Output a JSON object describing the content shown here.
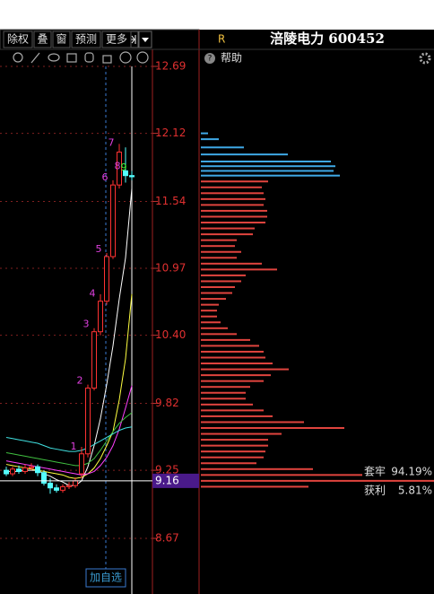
{
  "toolbar": {
    "buttons": [
      "除权",
      "叠",
      "窗",
      "预测",
      "更多"
    ]
  },
  "header": {
    "badge": "R",
    "title": "涪陵电力 600452"
  },
  "help": "帮助",
  "price_axis": {
    "ylim": [
      8.67,
      12.69
    ],
    "ticks": [
      {
        "value": 12.69,
        "label": "12.69"
      },
      {
        "value": 12.12,
        "label": "12.12"
      },
      {
        "value": 11.54,
        "label": "11.54"
      },
      {
        "value": 10.97,
        "label": "10.97"
      },
      {
        "value": 10.4,
        "label": "10.40"
      },
      {
        "value": 9.82,
        "label": "9.82"
      },
      {
        "value": 9.25,
        "label": "9.25"
      },
      {
        "value": 8.67,
        "label": "8.67"
      }
    ]
  },
  "current_price": {
    "value": 9.16,
    "label": "9.16"
  },
  "candles": {
    "open": [
      9.25,
      9.22,
      9.26,
      9.24,
      9.27,
      9.28,
      9.23,
      9.14,
      9.1,
      9.08,
      9.11,
      9.12,
      9.22,
      9.39,
      9.95,
      10.43,
      10.69,
      11.07,
      11.68,
      11.8,
      11.76
    ],
    "close": [
      9.22,
      9.26,
      9.24,
      9.27,
      9.28,
      9.23,
      9.14,
      9.1,
      9.08,
      9.11,
      9.12,
      9.16,
      9.39,
      9.95,
      10.43,
      10.69,
      11.07,
      11.68,
      11.96,
      11.76,
      11.75
    ],
    "high": [
      9.28,
      9.28,
      9.29,
      9.3,
      9.31,
      9.3,
      9.25,
      9.18,
      9.13,
      9.13,
      9.15,
      9.19,
      9.45,
      9.98,
      10.46,
      10.75,
      11.1,
      11.72,
      12.03,
      12.0,
      11.8
    ],
    "low": [
      9.2,
      9.2,
      9.22,
      9.22,
      9.25,
      9.2,
      9.12,
      9.05,
      9.06,
      9.06,
      9.09,
      9.1,
      9.18,
      9.36,
      9.93,
      10.4,
      10.66,
      11.05,
      11.65,
      11.7,
      11.72
    ]
  },
  "count_labels": [
    "1",
    "2",
    "3",
    "4",
    "5",
    "6",
    "7",
    "8",
    "9"
  ],
  "moving_averages": [
    {
      "color": "#ffffff",
      "values": [
        9.24,
        9.24,
        9.24,
        9.25,
        9.25,
        9.25,
        9.22,
        9.2,
        9.17,
        9.15,
        9.12,
        9.12,
        9.16,
        9.28,
        9.46,
        9.69,
        9.98,
        10.31,
        10.71,
        11.06,
        11.65
      ]
    },
    {
      "color": "#ffff40",
      "values": [
        9.3,
        9.29,
        9.28,
        9.27,
        9.26,
        9.25,
        9.24,
        9.23,
        9.22,
        9.21,
        9.19,
        9.18,
        9.19,
        9.22,
        9.27,
        9.35,
        9.46,
        9.58,
        9.85,
        10.2,
        10.75
      ]
    },
    {
      "color": "#ff40ff",
      "values": [
        9.33,
        9.32,
        9.31,
        9.3,
        9.29,
        9.28,
        9.27,
        9.26,
        9.25,
        9.24,
        9.23,
        9.22,
        9.21,
        9.22,
        9.24,
        9.29,
        9.36,
        9.46,
        9.6,
        9.78,
        9.97
      ]
    },
    {
      "color": "#40c040",
      "values": [
        9.4,
        9.39,
        9.38,
        9.37,
        9.36,
        9.35,
        9.34,
        9.33,
        9.32,
        9.31,
        9.3,
        9.29,
        9.29,
        9.31,
        9.35,
        9.42,
        9.5,
        9.58,
        9.65,
        9.7,
        9.74
      ]
    },
    {
      "color": "#40e0e0",
      "values": [
        9.53,
        9.52,
        9.51,
        9.5,
        9.49,
        9.48,
        9.46,
        9.44,
        9.43,
        9.42,
        9.41,
        9.41,
        9.42,
        9.44,
        9.47,
        9.5,
        9.53,
        9.56,
        9.59,
        9.61,
        9.62
      ]
    }
  ],
  "profile": {
    "upper": {
      "color": "#3fa9e6",
      "prices": [
        12.12,
        12.07,
        12.0,
        11.94,
        11.88,
        11.84,
        11.8,
        11.76
      ],
      "lengths": [
        8,
        20,
        48,
        97,
        145,
        150,
        148,
        155
      ]
    },
    "lower": {
      "color": "#e0443e",
      "prices": [
        11.71,
        11.66,
        11.61,
        11.56,
        11.51,
        11.46,
        11.41,
        11.36,
        11.31,
        11.26,
        11.21,
        11.16,
        11.11,
        11.06,
        11.01,
        10.96,
        10.91,
        10.86,
        10.81,
        10.76,
        10.71,
        10.66,
        10.61,
        10.56,
        10.51,
        10.46,
        10.41,
        10.36,
        10.31,
        10.26,
        10.21,
        10.16,
        10.11,
        10.06,
        10.01,
        9.96,
        9.91,
        9.86,
        9.81,
        9.76,
        9.71,
        9.66,
        9.61,
        9.56,
        9.51,
        9.46,
        9.41,
        9.36,
        9.31,
        9.26,
        9.21,
        9.16,
        9.11
      ],
      "lengths": [
        75,
        68,
        70,
        72,
        70,
        74,
        74,
        72,
        60,
        58,
        40,
        38,
        45,
        40,
        68,
        85,
        50,
        45,
        38,
        35,
        28,
        20,
        18,
        18,
        22,
        30,
        40,
        55,
        65,
        70,
        72,
        80,
        98,
        78,
        70,
        55,
        50,
        50,
        58,
        70,
        80,
        115,
        160,
        90,
        75,
        75,
        72,
        70,
        62,
        125,
        180,
        260,
        120
      ]
    }
  },
  "stats": [
    {
      "label": "套牢",
      "value": "94.19%"
    },
    {
      "label": "获利",
      "value": "5.81%"
    }
  ],
  "add_button": "加自选"
}
